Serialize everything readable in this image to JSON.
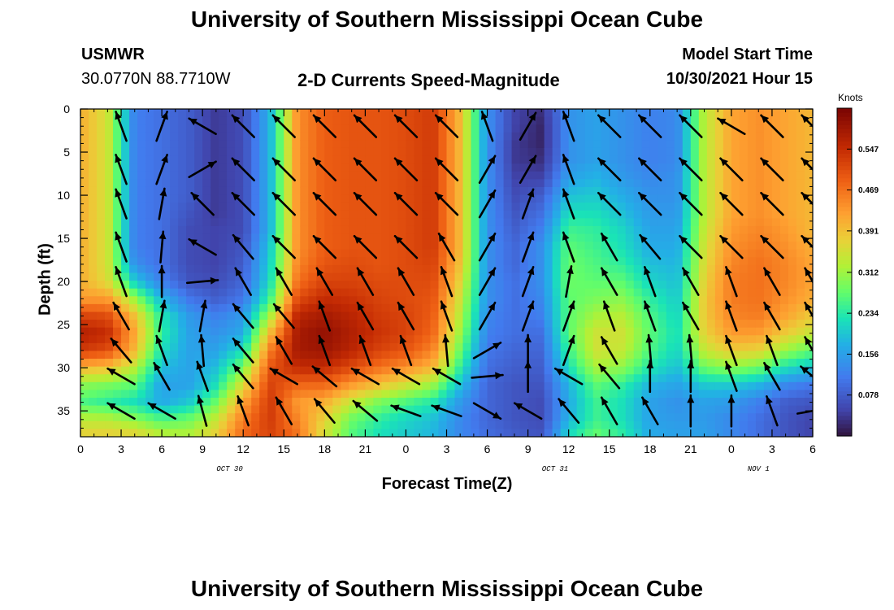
{
  "page": {
    "title_top": "University of Southern Mississippi Ocean Cube",
    "title_bottom": "University of Southern Mississippi Ocean Cube",
    "station_name": "USMWR",
    "station_coords": "30.0770N  88.7710W",
    "model_label": "Model Start Time",
    "model_time": "10/30/2021 Hour 15"
  },
  "chart_data": {
    "type": "heatmap",
    "title": "2-D Currents Speed-Magnitude",
    "xlabel": "Forecast Time(Z)",
    "ylabel": "Depth (ft)",
    "colorbar_label": "Knots",
    "colorbar_ticks": [
      "0.547",
      "0.469",
      "0.391",
      "0.312",
      "0.234",
      "0.156",
      "0.078"
    ],
    "colorbar_values": [
      0.547,
      0.469,
      0.391,
      0.312,
      0.234,
      0.156,
      0.078
    ],
    "value_range": [
      0.0,
      0.625
    ],
    "x_tick_labels": [
      "0",
      "3",
      "6",
      "9",
      "12",
      "15",
      "18",
      "21",
      "0",
      "3",
      "6",
      "9",
      "12",
      "15",
      "18",
      "21",
      "0",
      "3",
      "6"
    ],
    "x_range_hours": [
      0,
      54
    ],
    "date_labels": [
      {
        "text": "OCT 30",
        "hour": 11
      },
      {
        "text": "OCT 31",
        "hour": 35
      },
      {
        "text": "NOV 1",
        "hour": 50
      }
    ],
    "y_tick_labels": [
      "0",
      "5",
      "10",
      "15",
      "20",
      "25",
      "30",
      "35"
    ],
    "y_range_ft": [
      0,
      38
    ],
    "depth_profile": [
      0,
      2,
      4,
      6,
      8,
      10,
      12,
      14,
      16,
      18,
      20,
      22,
      24,
      26,
      28,
      30,
      32,
      34,
      36,
      38
    ],
    "speed_profiles_by_hour": [
      {
        "hour": 0,
        "speeds": [
          0.41,
          0.41,
          0.41,
          0.41,
          0.41,
          0.41,
          0.41,
          0.41,
          0.41,
          0.41,
          0.41,
          0.43,
          0.52,
          0.57,
          0.53,
          0.4,
          0.3,
          0.26,
          0.33,
          0.38
        ]
      },
      {
        "hour": 2,
        "speeds": [
          0.35,
          0.35,
          0.35,
          0.35,
          0.35,
          0.35,
          0.35,
          0.35,
          0.35,
          0.35,
          0.36,
          0.43,
          0.51,
          0.55,
          0.51,
          0.39,
          0.29,
          0.24,
          0.33,
          0.38
        ]
      },
      {
        "hour": 4,
        "speeds": [
          0.12,
          0.12,
          0.12,
          0.12,
          0.12,
          0.12,
          0.12,
          0.12,
          0.12,
          0.14,
          0.2,
          0.31,
          0.39,
          0.42,
          0.4,
          0.33,
          0.27,
          0.22,
          0.3,
          0.38
        ]
      },
      {
        "hour": 6,
        "speeds": [
          0.1,
          0.1,
          0.1,
          0.1,
          0.1,
          0.1,
          0.1,
          0.1,
          0.1,
          0.1,
          0.12,
          0.18,
          0.23,
          0.24,
          0.22,
          0.19,
          0.16,
          0.17,
          0.26,
          0.34
        ]
      },
      {
        "hour": 8,
        "speeds": [
          0.08,
          0.08,
          0.08,
          0.08,
          0.08,
          0.08,
          0.07,
          0.06,
          0.06,
          0.06,
          0.07,
          0.11,
          0.15,
          0.16,
          0.16,
          0.16,
          0.16,
          0.2,
          0.28,
          0.33
        ]
      },
      {
        "hour": 10,
        "speeds": [
          0.04,
          0.04,
          0.04,
          0.04,
          0.04,
          0.04,
          0.04,
          0.05,
          0.05,
          0.05,
          0.06,
          0.08,
          0.12,
          0.14,
          0.16,
          0.19,
          0.22,
          0.28,
          0.34,
          0.38
        ]
      },
      {
        "hour": 12,
        "speeds": [
          0.06,
          0.06,
          0.06,
          0.06,
          0.06,
          0.06,
          0.06,
          0.06,
          0.07,
          0.08,
          0.09,
          0.11,
          0.15,
          0.17,
          0.22,
          0.29,
          0.36,
          0.42,
          0.46,
          0.48
        ]
      },
      {
        "hour": 14,
        "speeds": [
          0.18,
          0.18,
          0.18,
          0.18,
          0.18,
          0.18,
          0.18,
          0.18,
          0.2,
          0.21,
          0.22,
          0.25,
          0.32,
          0.4,
          0.46,
          0.5,
          0.52,
          0.53,
          0.53,
          0.52
        ]
      },
      {
        "hour": 16,
        "speeds": [
          0.44,
          0.44,
          0.44,
          0.44,
          0.44,
          0.44,
          0.44,
          0.44,
          0.44,
          0.45,
          0.47,
          0.51,
          0.56,
          0.58,
          0.58,
          0.55,
          0.48,
          0.43,
          0.45,
          0.47
        ]
      },
      {
        "hour": 18,
        "speeds": [
          0.49,
          0.49,
          0.49,
          0.49,
          0.49,
          0.49,
          0.49,
          0.49,
          0.49,
          0.5,
          0.52,
          0.55,
          0.58,
          0.6,
          0.59,
          0.55,
          0.48,
          0.41,
          0.37,
          0.35
        ]
      },
      {
        "hour": 20,
        "speeds": [
          0.5,
          0.5,
          0.5,
          0.5,
          0.5,
          0.5,
          0.5,
          0.5,
          0.5,
          0.51,
          0.52,
          0.54,
          0.56,
          0.57,
          0.56,
          0.51,
          0.43,
          0.34,
          0.28,
          0.26
        ]
      },
      {
        "hour": 22,
        "speeds": [
          0.5,
          0.5,
          0.5,
          0.5,
          0.5,
          0.5,
          0.5,
          0.5,
          0.5,
          0.5,
          0.51,
          0.52,
          0.53,
          0.54,
          0.52,
          0.47,
          0.39,
          0.29,
          0.24,
          0.22
        ]
      },
      {
        "hour": 24,
        "speeds": [
          0.51,
          0.51,
          0.51,
          0.51,
          0.51,
          0.51,
          0.51,
          0.51,
          0.51,
          0.51,
          0.51,
          0.51,
          0.52,
          0.52,
          0.5,
          0.44,
          0.35,
          0.26,
          0.21,
          0.2
        ]
      },
      {
        "hour": 26,
        "speeds": [
          0.53,
          0.53,
          0.53,
          0.53,
          0.53,
          0.53,
          0.53,
          0.53,
          0.53,
          0.52,
          0.51,
          0.5,
          0.49,
          0.48,
          0.45,
          0.4,
          0.31,
          0.23,
          0.19,
          0.18
        ]
      },
      {
        "hour": 28,
        "speeds": [
          0.4,
          0.4,
          0.4,
          0.4,
          0.4,
          0.4,
          0.4,
          0.4,
          0.4,
          0.39,
          0.37,
          0.35,
          0.33,
          0.31,
          0.28,
          0.24,
          0.19,
          0.15,
          0.13,
          0.13
        ]
      },
      {
        "hour": 30,
        "speeds": [
          0.14,
          0.14,
          0.14,
          0.14,
          0.14,
          0.14,
          0.14,
          0.14,
          0.14,
          0.14,
          0.14,
          0.14,
          0.13,
          0.12,
          0.11,
          0.1,
          0.09,
          0.09,
          0.09,
          0.1
        ]
      },
      {
        "hour": 32,
        "speeds": [
          0.05,
          0.05,
          0.04,
          0.04,
          0.05,
          0.06,
          0.07,
          0.08,
          0.09,
          0.09,
          0.1,
          0.1,
          0.1,
          0.1,
          0.09,
          0.08,
          0.07,
          0.07,
          0.07,
          0.08
        ]
      },
      {
        "hour": 34,
        "speeds": [
          0.03,
          0.02,
          0.02,
          0.03,
          0.05,
          0.08,
          0.1,
          0.12,
          0.14,
          0.14,
          0.14,
          0.13,
          0.12,
          0.1,
          0.09,
          0.08,
          0.07,
          0.06,
          0.06,
          0.07
        ]
      },
      {
        "hour": 36,
        "speeds": [
          0.14,
          0.14,
          0.14,
          0.14,
          0.16,
          0.19,
          0.22,
          0.25,
          0.27,
          0.28,
          0.28,
          0.27,
          0.27,
          0.27,
          0.25,
          0.22,
          0.18,
          0.17,
          0.18,
          0.22
        ]
      },
      {
        "hour": 38,
        "speeds": [
          0.16,
          0.16,
          0.16,
          0.16,
          0.18,
          0.2,
          0.22,
          0.24,
          0.25,
          0.26,
          0.27,
          0.29,
          0.32,
          0.35,
          0.35,
          0.32,
          0.27,
          0.25,
          0.25,
          0.28
        ]
      },
      {
        "hour": 40,
        "speeds": [
          0.14,
          0.14,
          0.14,
          0.14,
          0.15,
          0.17,
          0.19,
          0.21,
          0.22,
          0.24,
          0.27,
          0.3,
          0.33,
          0.35,
          0.34,
          0.3,
          0.24,
          0.22,
          0.22,
          0.24
        ]
      },
      {
        "hour": 42,
        "speeds": [
          0.12,
          0.12,
          0.12,
          0.12,
          0.13,
          0.14,
          0.15,
          0.16,
          0.17,
          0.19,
          0.21,
          0.24,
          0.26,
          0.27,
          0.26,
          0.23,
          0.18,
          0.16,
          0.16,
          0.17
        ]
      },
      {
        "hour": 44,
        "speeds": [
          0.13,
          0.13,
          0.13,
          0.13,
          0.14,
          0.14,
          0.15,
          0.16,
          0.17,
          0.18,
          0.19,
          0.2,
          0.21,
          0.22,
          0.21,
          0.19,
          0.16,
          0.14,
          0.15,
          0.16
        ]
      },
      {
        "hour": 46,
        "speeds": [
          0.33,
          0.33,
          0.33,
          0.33,
          0.33,
          0.33,
          0.33,
          0.34,
          0.35,
          0.36,
          0.37,
          0.38,
          0.38,
          0.37,
          0.34,
          0.28,
          0.2,
          0.16,
          0.15,
          0.16
        ]
      },
      {
        "hour": 48,
        "speeds": [
          0.42,
          0.42,
          0.42,
          0.42,
          0.42,
          0.42,
          0.42,
          0.43,
          0.44,
          0.45,
          0.46,
          0.46,
          0.45,
          0.43,
          0.38,
          0.3,
          0.2,
          0.15,
          0.13,
          0.13
        ]
      },
      {
        "hour": 50,
        "speeds": [
          0.44,
          0.44,
          0.44,
          0.44,
          0.44,
          0.44,
          0.44,
          0.45,
          0.46,
          0.47,
          0.47,
          0.47,
          0.46,
          0.43,
          0.37,
          0.28,
          0.18,
          0.12,
          0.1,
          0.1
        ]
      },
      {
        "hour": 52,
        "speeds": [
          0.42,
          0.42,
          0.42,
          0.42,
          0.42,
          0.42,
          0.42,
          0.43,
          0.44,
          0.45,
          0.45,
          0.44,
          0.42,
          0.38,
          0.31,
          0.22,
          0.13,
          0.08,
          0.07,
          0.07
        ]
      },
      {
        "hour": 54,
        "speeds": [
          0.4,
          0.4,
          0.4,
          0.4,
          0.4,
          0.4,
          0.4,
          0.4,
          0.41,
          0.42,
          0.42,
          0.41,
          0.38,
          0.34,
          0.27,
          0.19,
          0.11,
          0.07,
          0.05,
          0.05
        ]
      }
    ],
    "vector_hours": [
      3,
      6,
      9,
      12,
      15,
      18,
      21,
      24,
      27,
      30,
      33,
      36,
      39,
      42,
      45,
      48,
      51,
      54
    ],
    "vector_depths_ft": [
      2,
      7,
      11,
      16,
      20,
      24,
      28,
      31,
      35
    ],
    "vector_direction_deg": [
      [
        340,
        20,
        300,
        315,
        315,
        315,
        315,
        315,
        315,
        340,
        30,
        340,
        315,
        315,
        315,
        300,
        315,
        315
      ],
      [
        340,
        20,
        60,
        315,
        315,
        315,
        315,
        315,
        315,
        30,
        30,
        340,
        315,
        315,
        315,
        315,
        315,
        315
      ],
      [
        340,
        10,
        315,
        315,
        315,
        315,
        315,
        315,
        315,
        30,
        20,
        340,
        315,
        315,
        315,
        315,
        315,
        315
      ],
      [
        340,
        5,
        300,
        320,
        315,
        315,
        315,
        315,
        330,
        30,
        20,
        340,
        330,
        320,
        315,
        315,
        315,
        315
      ],
      [
        340,
        0,
        85,
        330,
        330,
        330,
        330,
        330,
        340,
        30,
        20,
        10,
        330,
        340,
        330,
        340,
        330,
        330
      ],
      [
        330,
        10,
        10,
        320,
        320,
        340,
        330,
        330,
        340,
        30,
        20,
        20,
        340,
        340,
        330,
        340,
        330,
        330
      ],
      [
        320,
        340,
        355,
        320,
        330,
        340,
        340,
        340,
        355,
        60,
        0,
        20,
        330,
        355,
        355,
        340,
        340,
        330
      ],
      [
        300,
        330,
        340,
        320,
        300,
        310,
        300,
        300,
        300,
        85,
        0,
        300,
        320,
        0,
        0,
        340,
        330,
        310
      ],
      [
        300,
        300,
        345,
        340,
        330,
        320,
        310,
        290,
        290,
        120,
        300,
        320,
        330,
        330,
        0,
        0,
        340,
        80
      ]
    ]
  }
}
